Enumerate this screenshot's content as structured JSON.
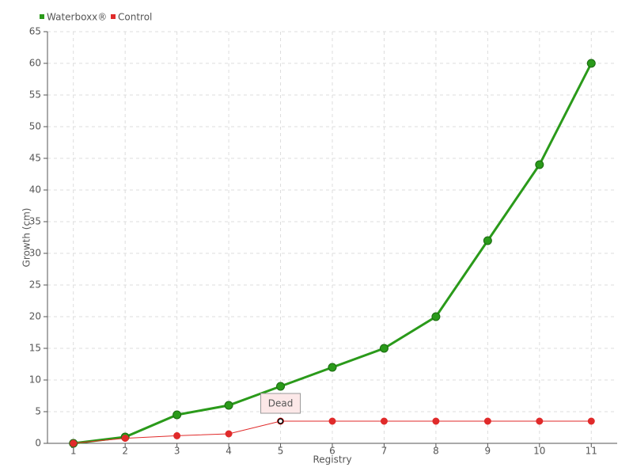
{
  "chart_data": {
    "type": "line",
    "categories": [
      "1",
      "2",
      "3",
      "4",
      "5",
      "6",
      "7",
      "8",
      "9",
      "10",
      "11"
    ],
    "series": [
      {
        "name": "Waterboxx®",
        "color": "#2a9a1a",
        "values": [
          0,
          1,
          4.5,
          6,
          9,
          12,
          15,
          20,
          32,
          44,
          60
        ]
      },
      {
        "name": "Control",
        "color": "#e02a2a",
        "values": [
          0,
          0.8,
          1.2,
          1.5,
          3.5,
          3.5,
          3.5,
          3.5,
          3.5,
          3.5,
          3.5
        ]
      }
    ],
    "x_label": "Registry",
    "y_label": "Growth (cm)",
    "annotation": "Dead",
    "ylim": [
      0,
      65
    ],
    "yticks": [
      0,
      5,
      10,
      15,
      20,
      25,
      30,
      35,
      40,
      45,
      50,
      55,
      60,
      65
    ],
    "grid": true,
    "legend": "top-left"
  }
}
